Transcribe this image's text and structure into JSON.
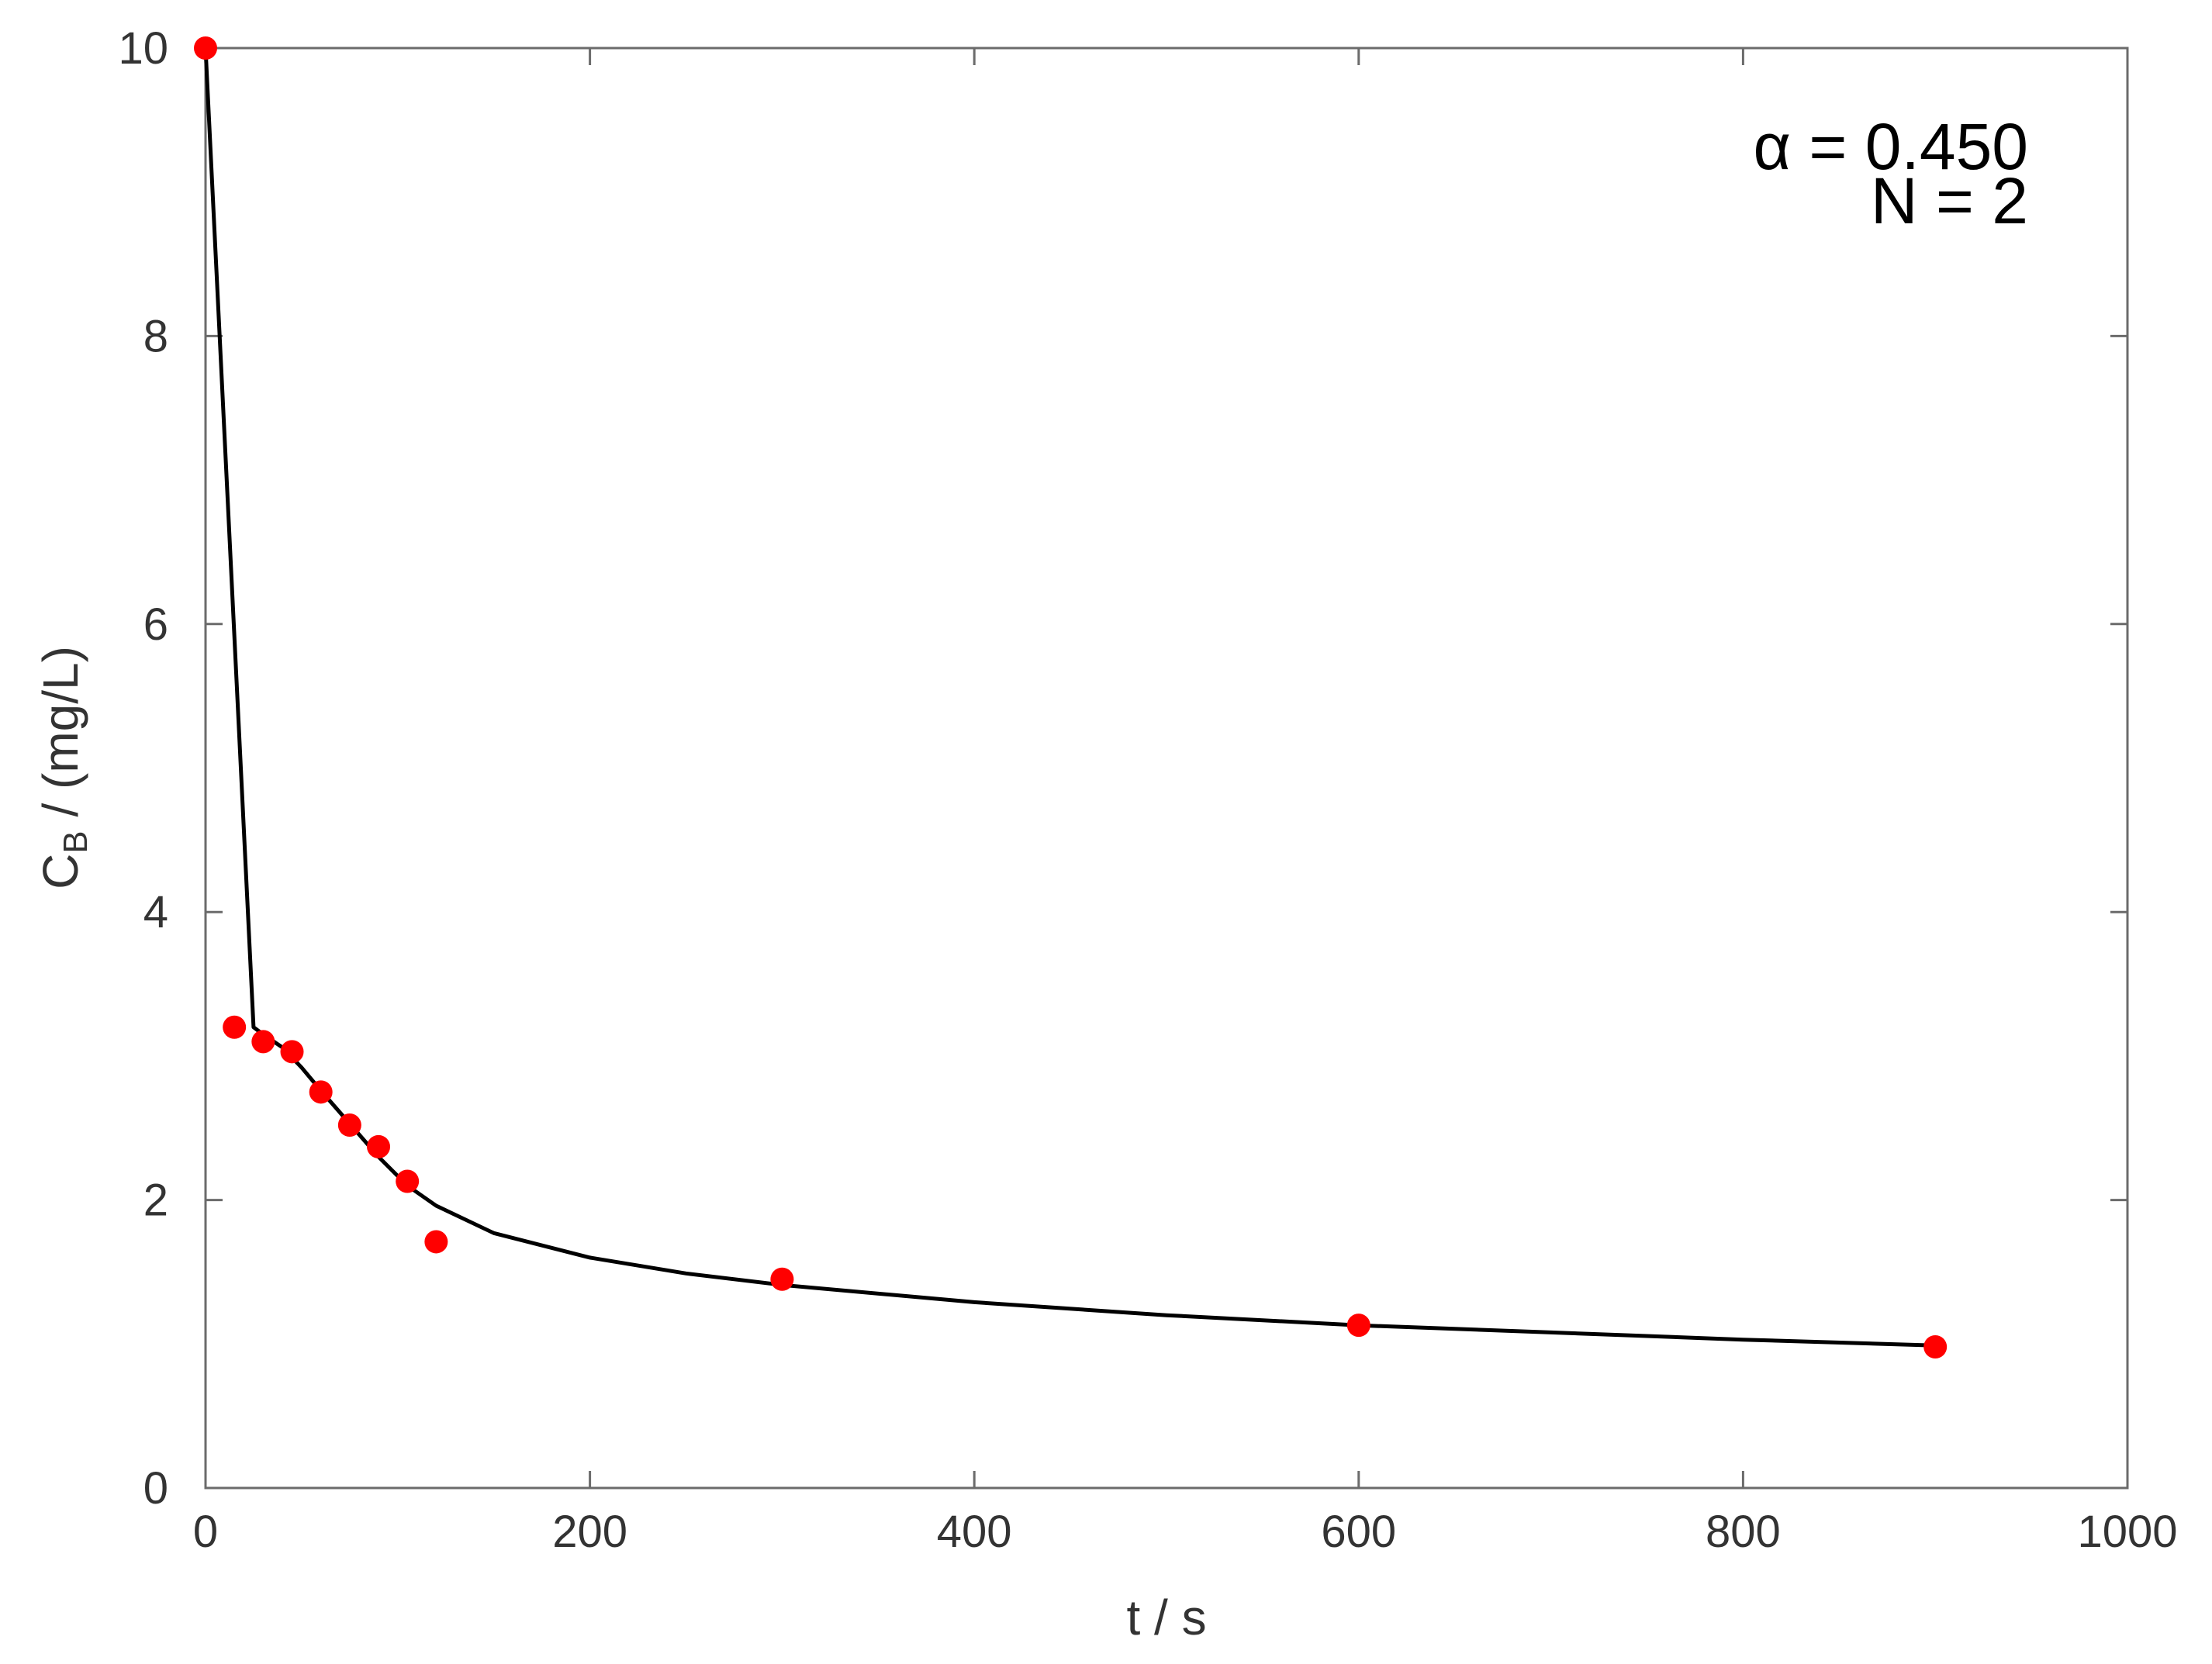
{
  "chart_data": {
    "type": "scatter",
    "xlabel": "t / s",
    "ylabel": {
      "main": "C",
      "subscript": "B",
      "suffix": " / (mg/L)"
    },
    "xlim": [
      0,
      1000
    ],
    "ylim": [
      0,
      10
    ],
    "xticks": [
      0,
      200,
      400,
      600,
      800,
      1000
    ],
    "yticks": [
      0,
      2,
      4,
      6,
      8,
      10
    ],
    "grid": false,
    "legend": "none",
    "annotations": [
      "α = 0.450",
      "N = 2"
    ],
    "series": [
      {
        "type": "scatter",
        "color": "#ff0000",
        "x": [
          0,
          15,
          30,
          45,
          60,
          75,
          90,
          105,
          120,
          300,
          600,
          900
        ],
        "y": [
          10.0,
          3.2,
          3.1,
          3.03,
          2.75,
          2.52,
          2.37,
          2.13,
          1.71,
          1.45,
          1.13,
          0.98
        ]
      },
      {
        "type": "line",
        "color": "#000000",
        "x": [
          0,
          25,
          30,
          40,
          50,
          60,
          75,
          90,
          105,
          120,
          150,
          200,
          250,
          300,
          400,
          500,
          600,
          700,
          800,
          900
        ],
        "y": [
          10.0,
          3.2,
          3.15,
          3.06,
          2.92,
          2.76,
          2.53,
          2.3,
          2.1,
          1.96,
          1.77,
          1.6,
          1.49,
          1.41,
          1.29,
          1.2,
          1.13,
          1.08,
          1.03,
          0.99
        ]
      }
    ]
  }
}
